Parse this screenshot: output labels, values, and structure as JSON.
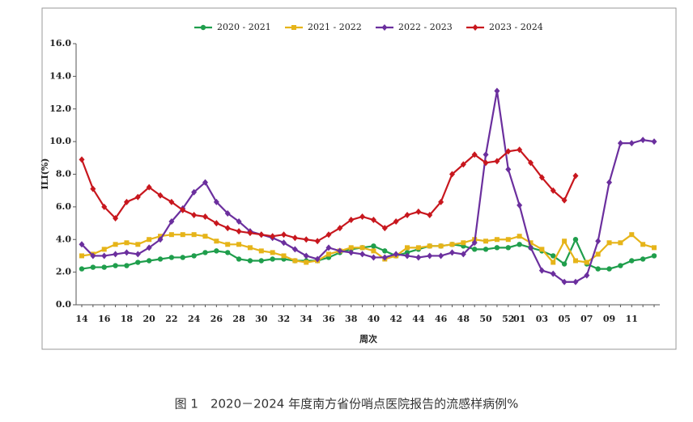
{
  "chart_data": {
    "type": "line",
    "caption": "图 1　2020－2024 年度南方省份哨点医院报告的流感样病例%",
    "ylabel": "ILI(%)",
    "xlabel": "周次",
    "categories": [
      "14",
      null,
      "16",
      null,
      "18",
      null,
      "20",
      null,
      "22",
      null,
      "24",
      null,
      "26",
      null,
      "28",
      null,
      "30",
      null,
      "32",
      null,
      "34",
      null,
      "36",
      null,
      "38",
      null,
      "40",
      null,
      "42",
      null,
      "44",
      null,
      "46",
      null,
      "48",
      null,
      "50",
      null,
      "52",
      "01",
      null,
      "03",
      null,
      "05",
      null,
      "07",
      null,
      "09",
      null,
      "11",
      null,
      null
    ],
    "ylim": [
      0,
      16
    ],
    "yticks": [
      {
        "value": 0,
        "label": "0.0"
      },
      {
        "value": 2,
        "label": "2.0"
      },
      {
        "value": 4,
        "label": "4.0"
      },
      {
        "value": 6,
        "label": "6.0"
      },
      {
        "value": 8,
        "label": "8.0"
      },
      {
        "value": 10,
        "label": "10.0"
      },
      {
        "value": 12,
        "label": "12.0"
      },
      {
        "value": 14,
        "label": "14.0"
      },
      {
        "value": 16,
        "label": "16.0"
      }
    ],
    "legend": "top",
    "series": [
      {
        "name": "2020 - 2021",
        "color": "#1f9e4c",
        "marker": "circle",
        "values": [
          2.2,
          2.3,
          2.3,
          2.4,
          2.4,
          2.6,
          2.7,
          2.8,
          2.9,
          2.9,
          3.0,
          3.2,
          3.3,
          3.2,
          2.8,
          2.7,
          2.7,
          2.8,
          2.8,
          2.7,
          2.7,
          2.7,
          2.9,
          3.2,
          3.4,
          3.5,
          3.6,
          3.3,
          3.0,
          3.2,
          3.4,
          3.6,
          3.6,
          3.7,
          3.6,
          3.4,
          3.4,
          3.5,
          3.5,
          3.7,
          3.5,
          3.3,
          3.0,
          2.5,
          4.0,
          2.5,
          2.2,
          2.2,
          2.4,
          2.7,
          2.8,
          3.0
        ]
      },
      {
        "name": "2021 - 2022",
        "color": "#e6b419",
        "marker": "square",
        "values": [
          3.0,
          3.1,
          3.4,
          3.7,
          3.8,
          3.7,
          4.0,
          4.2,
          4.3,
          4.3,
          4.3,
          4.2,
          3.9,
          3.7,
          3.7,
          3.5,
          3.3,
          3.2,
          3.0,
          2.7,
          2.6,
          2.7,
          3.1,
          3.3,
          3.5,
          3.5,
          3.3,
          2.8,
          3.0,
          3.5,
          3.5,
          3.6,
          3.6,
          3.7,
          3.8,
          4.0,
          3.9,
          4.0,
          4.0,
          4.2,
          3.8,
          3.4,
          2.6,
          3.9,
          2.7,
          2.6,
          3.1,
          3.8,
          3.8,
          4.3,
          3.7,
          3.5
        ]
      },
      {
        "name": "2022 - 2023",
        "color": "#6b2f9e",
        "marker": "diamond",
        "values": [
          3.7,
          3.0,
          3.0,
          3.1,
          3.2,
          3.1,
          3.5,
          4.0,
          5.1,
          5.9,
          6.9,
          7.5,
          6.3,
          5.6,
          5.1,
          4.5,
          4.3,
          4.1,
          3.8,
          3.4,
          3.0,
          2.8,
          3.5,
          3.3,
          3.2,
          3.1,
          2.9,
          2.9,
          3.1,
          3.0,
          2.9,
          3.0,
          3.0,
          3.2,
          3.1,
          3.8,
          9.2,
          13.1,
          8.3,
          6.1,
          3.5,
          2.1,
          1.9,
          1.4,
          1.4,
          1.8,
          3.9,
          7.5,
          9.9,
          9.9,
          10.1,
          10.0
        ]
      },
      {
        "name": "2023 - 2024",
        "color": "#c8171e",
        "marker": "diamond",
        "values": [
          8.9,
          7.1,
          6.0,
          5.3,
          6.3,
          6.6,
          7.2,
          6.7,
          6.3,
          5.8,
          5.5,
          5.4,
          5.0,
          4.7,
          4.5,
          4.4,
          4.3,
          4.2,
          4.3,
          4.1,
          4.0,
          3.9,
          4.3,
          4.7,
          5.2,
          5.4,
          5.2,
          4.7,
          5.1,
          5.5,
          5.7,
          5.5,
          6.3,
          8.0,
          8.6,
          9.2,
          8.7,
          8.8,
          9.4,
          9.5,
          8.7,
          7.8,
          7.0,
          6.4,
          7.9,
          null,
          null,
          null,
          null,
          null,
          null,
          null
        ]
      }
    ]
  }
}
